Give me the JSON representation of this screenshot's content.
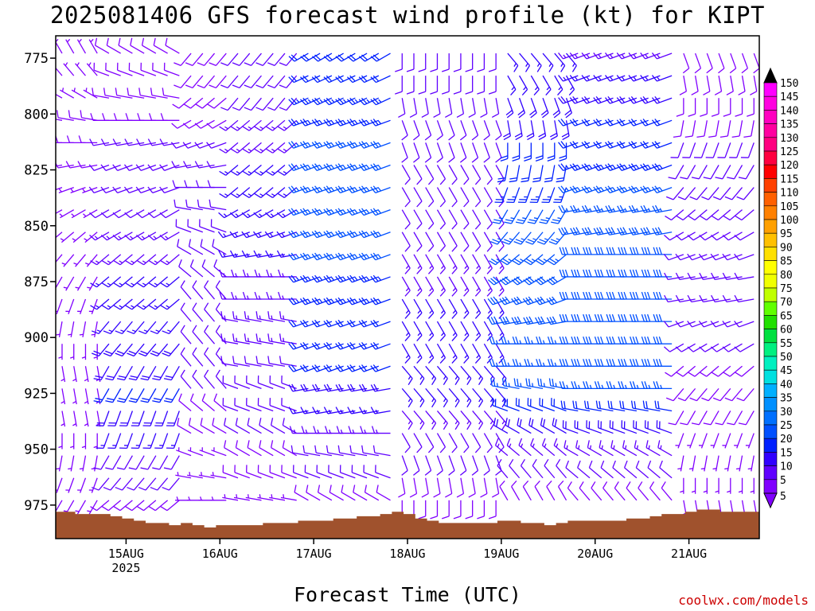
{
  "title": "2025081406 GFS forecast wind profile (kt) for KIPT",
  "xlabel": "Forecast Time (UTC)",
  "credit": "coolwx.com/models",
  "chart_data": {
    "type": "wind-barb-profile",
    "title": "2025081406 GFS forecast wind profile (kt) for KIPT",
    "xlabel": "Forecast Time (UTC)",
    "ylabel": "",
    "units": "kt",
    "ylim": [
      990,
      765
    ],
    "y_ticks": [
      775,
      800,
      825,
      850,
      875,
      900,
      925,
      950,
      975
    ],
    "x_ticks": [
      {
        "label": "15AUG",
        "sublabel": "2025",
        "hours": 18
      },
      {
        "label": "16AUG",
        "sublabel": "",
        "hours": 42
      },
      {
        "label": "17AUG",
        "sublabel": "",
        "hours": 66
      },
      {
        "label": "18AUG",
        "sublabel": "",
        "hours": 90
      },
      {
        "label": "19AUG",
        "sublabel": "",
        "hours": 114
      },
      {
        "label": "20AUG",
        "sublabel": "",
        "hours": 138
      },
      {
        "label": "21AUG",
        "sublabel": "",
        "hours": 162
      }
    ],
    "xlim_hours": [
      0,
      180
    ],
    "forecast_hours": [
      0,
      3,
      6,
      9,
      12,
      15,
      18,
      21,
      24,
      27,
      30,
      33,
      36,
      39,
      42,
      45,
      48,
      51,
      54,
      57,
      60,
      63,
      66,
      69,
      72,
      75,
      78,
      81,
      84,
      87,
      90,
      93,
      96,
      99,
      102,
      105,
      108,
      111,
      114,
      117,
      120,
      123,
      126,
      129,
      132,
      135,
      138,
      141,
      144,
      147,
      150,
      153,
      156,
      159,
      162,
      165,
      168,
      171,
      174,
      177
    ],
    "levels_hpa": [
      770,
      780,
      790,
      800,
      810,
      820,
      830,
      840,
      850,
      860,
      870,
      880,
      890,
      900,
      910,
      920,
      930,
      940,
      950,
      960,
      970
    ],
    "wind_profile_segments": [
      {
        "hours_from": 0,
        "hours_to": 9,
        "direction_deg": [
          330,
          320,
          300,
          280,
          270,
          260,
          250,
          240,
          230,
          220,
          210,
          200,
          190,
          180,
          170,
          170,
          170,
          180,
          190,
          200,
          210
        ],
        "speed_kt": [
          5,
          6,
          7,
          8,
          8,
          8,
          7,
          7,
          6,
          6,
          6,
          6,
          6,
          7,
          7,
          7,
          6,
          6,
          6,
          5,
          5
        ]
      },
      {
        "hours_from": 12,
        "hours_to": 30,
        "direction_deg": [
          300,
          290,
          280,
          270,
          260,
          250,
          250,
          240,
          240,
          230,
          230,
          230,
          220,
          220,
          210,
          210,
          200,
          200,
          210,
          220,
          230
        ],
        "speed_kt": [
          8,
          8,
          9,
          9,
          10,
          11,
          12,
          12,
          13,
          14,
          15,
          16,
          17,
          18,
          19,
          20,
          18,
          15,
          12,
          10,
          8
        ]
      },
      {
        "hours_from": 33,
        "hours_to": 42,
        "direction_deg": [
          220,
          220,
          230,
          240,
          250,
          260,
          270,
          280,
          290,
          300,
          310,
          320,
          320,
          320,
          320,
          320,
          310,
          300,
          290,
          280,
          270
        ],
        "speed_kt": [
          8,
          8,
          8,
          9,
          10,
          11,
          12,
          12,
          12,
          12,
          12,
          12,
          12,
          11,
          10,
          10,
          9,
          8,
          7,
          6,
          6
        ]
      },
      {
        "hours_from": 45,
        "hours_to": 60,
        "direction_deg": [
          220,
          220,
          220,
          230,
          230,
          230,
          230,
          240,
          250,
          260,
          270,
          270,
          280,
          280,
          280,
          290,
          290,
          300,
          300,
          290,
          280
        ],
        "speed_kt": [
          10,
          11,
          12,
          13,
          14,
          15,
          15,
          16,
          16,
          15,
          14,
          14,
          13,
          13,
          12,
          12,
          11,
          10,
          9,
          8,
          7
        ]
      },
      {
        "hours_from": 63,
        "hours_to": 84,
        "direction_deg": [
          240,
          245,
          245,
          250,
          250,
          250,
          250,
          250,
          250,
          250,
          250,
          250,
          250,
          250,
          250,
          260,
          260,
          270,
          280,
          290,
          300
        ],
        "speed_kt": [
          20,
          22,
          23,
          24,
          25,
          25,
          26,
          26,
          26,
          25,
          24,
          23,
          22,
          21,
          20,
          18,
          16,
          14,
          12,
          10,
          8
        ]
      },
      {
        "hours_from": 87,
        "hours_to": 111,
        "direction_deg": [
          180,
          180,
          170,
          160,
          160,
          150,
          150,
          150,
          150,
          150,
          150,
          150,
          150,
          150,
          140,
          140,
          140,
          150,
          160,
          170,
          180
        ],
        "speed_kt": [
          12,
          11,
          10,
          10,
          10,
          10,
          11,
          12,
          12,
          13,
          14,
          15,
          16,
          16,
          16,
          15,
          14,
          12,
          10,
          9,
          8
        ]
      },
      {
        "hours_from": 114,
        "hours_to": 129,
        "direction_deg": [
          140,
          150,
          160,
          170,
          180,
          190,
          200,
          210,
          220,
          230,
          240,
          250,
          260,
          270,
          270,
          280,
          290,
          300,
          310,
          320,
          330
        ],
        "speed_kt": [
          16,
          17,
          18,
          19,
          20,
          22,
          24,
          25,
          26,
          27,
          28,
          28,
          28,
          27,
          26,
          25,
          22,
          18,
          14,
          10,
          8
        ]
      },
      {
        "hours_from": 132,
        "hours_to": 156,
        "direction_deg": [
          250,
          250,
          250,
          250,
          250,
          250,
          250,
          260,
          260,
          270,
          270,
          270,
          270,
          270,
          270,
          270,
          280,
          290,
          300,
          310,
          320
        ],
        "speed_kt": [
          14,
          16,
          18,
          20,
          22,
          24,
          26,
          27,
          28,
          28,
          28,
          28,
          29,
          29,
          28,
          26,
          22,
          18,
          14,
          10,
          8
        ]
      },
      {
        "hours_from": 159,
        "hours_to": 177,
        "direction_deg": [
          160,
          170,
          180,
          190,
          200,
          210,
          220,
          230,
          240,
          250,
          260,
          260,
          250,
          240,
          230,
          220,
          210,
          200,
          190,
          180,
          170
        ],
        "speed_kt": [
          8,
          8,
          9,
          9,
          10,
          10,
          11,
          11,
          12,
          12,
          12,
          11,
          11,
          10,
          9,
          9,
          8,
          7,
          7,
          6,
          6
        ]
      }
    ],
    "surface_pressure_hpa": [
      978,
      978,
      979,
      979,
      979,
      980,
      981,
      982,
      983,
      983,
      984,
      983,
      984,
      985,
      984,
      984,
      984,
      984,
      983,
      983,
      983,
      982,
      982,
      982,
      981,
      981,
      980,
      980,
      979,
      978,
      979,
      981,
      982,
      983,
      983,
      983,
      983,
      983,
      982,
      982,
      983,
      983,
      984,
      983,
      982,
      982,
      982,
      982,
      982,
      981,
      981,
      980,
      979,
      979,
      978,
      977,
      977,
      978,
      978,
      978
    ],
    "speed_colorbar": {
      "values": [
        5,
        10,
        15,
        20,
        25,
        30,
        35,
        40,
        45,
        50,
        55,
        60,
        65,
        70,
        75,
        80,
        85,
        90,
        95,
        100,
        105,
        110,
        115,
        120,
        125,
        130,
        135,
        140,
        145,
        150
      ],
      "colors": [
        "#8000ff",
        "#6000ff",
        "#3000ff",
        "#0020ff",
        "#0050ff",
        "#0070ff",
        "#0090ff",
        "#00b0ff",
        "#00e0e0",
        "#00f0c0",
        "#00f080",
        "#00e040",
        "#20e000",
        "#60ff00",
        "#c0ff00",
        "#f0ff00",
        "#ffff00",
        "#ffe000",
        "#ffc000",
        "#ffa000",
        "#ff8000",
        "#ff6000",
        "#ff4000",
        "#ff0000",
        "#ff0040",
        "#ff0080",
        "#ff00a0",
        "#ff00c0",
        "#ff00e0",
        "#ff00ff"
      ]
    },
    "ground_color": "#a0522d",
    "grid": false,
    "legend": "right"
  }
}
